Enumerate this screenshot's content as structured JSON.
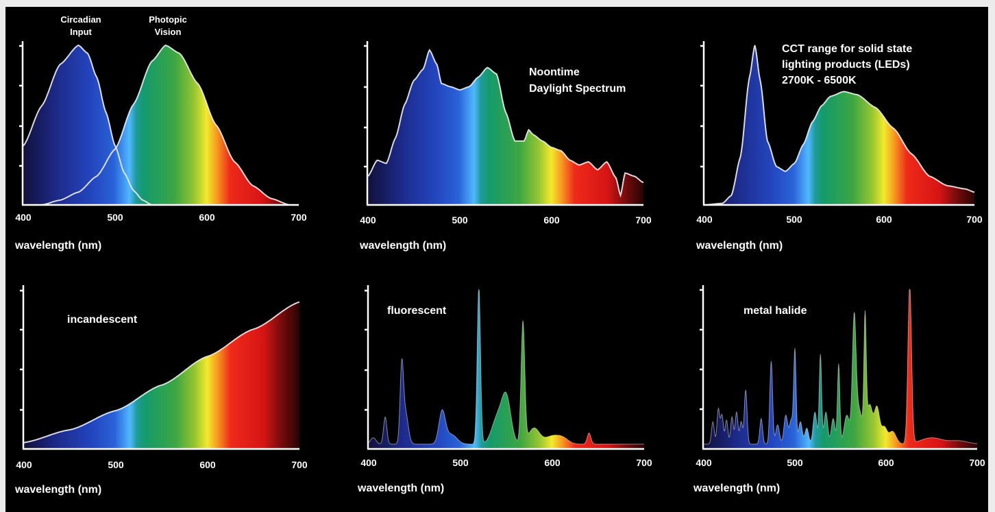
{
  "chart_data": [
    {
      "type": "area",
      "title": "",
      "xlabel": "wavelength (nm)",
      "ylabel": "",
      "xlim": [
        400,
        700
      ],
      "xticks": [
        "400",
        "500",
        "600",
        "700"
      ],
      "grid": false,
      "fill": "visible spectrum gradient",
      "series": [
        {
          "name": "Circadian Input",
          "x": [
            400,
            420,
            440,
            460,
            470,
            480,
            490,
            500,
            510,
            520,
            530,
            540
          ],
          "y": [
            0.37,
            0.62,
            0.88,
            1.0,
            0.95,
            0.8,
            0.58,
            0.37,
            0.2,
            0.09,
            0.03,
            0
          ]
        },
        {
          "name": "Photopic Vision",
          "x": [
            420,
            440,
            460,
            480,
            500,
            520,
            540,
            555,
            570,
            590,
            610,
            630,
            650,
            670,
            690
          ],
          "y": [
            0,
            0.03,
            0.08,
            0.18,
            0.35,
            0.63,
            0.9,
            1.0,
            0.95,
            0.76,
            0.5,
            0.27,
            0.12,
            0.04,
            0
          ]
        }
      ]
    },
    {
      "type": "area",
      "title": "",
      "annotations": [
        "Noontime",
        "Daylight Spectrum"
      ],
      "xlabel": "wavelength (nm)",
      "ylabel": "",
      "xlim": [
        400,
        700
      ],
      "xticks": [
        "400",
        "500",
        "600",
        "700"
      ],
      "grid": false,
      "series": [
        {
          "name": "",
          "x": [
            400,
            410,
            420,
            430,
            440,
            450,
            460,
            467,
            475,
            480,
            490,
            500,
            510,
            520,
            530,
            540,
            550,
            560,
            570,
            575,
            580,
            590,
            600,
            610,
            620,
            630,
            640,
            650,
            660,
            670,
            675,
            680,
            690,
            700
          ],
          "y": [
            0.18,
            0.28,
            0.26,
            0.42,
            0.63,
            0.78,
            0.85,
            0.97,
            0.88,
            0.76,
            0.74,
            0.72,
            0.74,
            0.8,
            0.86,
            0.82,
            0.58,
            0.4,
            0.4,
            0.47,
            0.44,
            0.4,
            0.36,
            0.34,
            0.28,
            0.25,
            0.27,
            0.22,
            0.27,
            0.17,
            0.06,
            0.2,
            0.18,
            0.14
          ]
        }
      ]
    },
    {
      "type": "area",
      "title": "",
      "annotations": [
        "CCT range for solid state",
        "lighting products (LEDs)",
        "2700K - 6500K"
      ],
      "xlabel": "wavelength (nm)",
      "ylabel": "",
      "xlim": [
        400,
        700
      ],
      "xticks": [
        "400",
        "500",
        "600",
        "700"
      ],
      "grid": false,
      "series": [
        {
          "name": "",
          "x": [
            400,
            420,
            430,
            440,
            450,
            456,
            462,
            470,
            480,
            490,
            500,
            510,
            520,
            530,
            540,
            555,
            570,
            590,
            610,
            630,
            650,
            670,
            690,
            700
          ],
          "y": [
            0,
            0.01,
            0.06,
            0.3,
            0.8,
            1.0,
            0.78,
            0.4,
            0.24,
            0.21,
            0.26,
            0.38,
            0.52,
            0.62,
            0.68,
            0.71,
            0.69,
            0.61,
            0.48,
            0.32,
            0.18,
            0.12,
            0.1,
            0.08
          ]
        }
      ]
    },
    {
      "type": "area",
      "title": "",
      "annotations": [
        "incandescent"
      ],
      "xlabel": "wavelength (nm)",
      "ylabel": "",
      "xlim": [
        400,
        700
      ],
      "xticks": [
        "400",
        "500",
        "600",
        "700"
      ],
      "grid": false,
      "series": [
        {
          "name": "",
          "x": [
            400,
            450,
            500,
            550,
            600,
            650,
            700
          ],
          "y": [
            0.04,
            0.12,
            0.24,
            0.4,
            0.58,
            0.75,
            0.92
          ]
        }
      ]
    },
    {
      "type": "area",
      "title": "",
      "annotations": [
        "fluorescent"
      ],
      "xlabel": "wavelength (nm)",
      "ylabel": "",
      "xlim": [
        400,
        700
      ],
      "xticks": [
        "400",
        "500",
        "600",
        "700"
      ],
      "grid": false,
      "baseline": 0.03,
      "peaks": [
        {
          "x": 405,
          "y": 0.04,
          "w": 3
        },
        {
          "x": 418,
          "y": 0.17,
          "w": 1.8
        },
        {
          "x": 436,
          "y": 0.45,
          "w": 1.8
        },
        {
          "x": 440,
          "y": 0.2,
          "w": 3
        },
        {
          "x": 480,
          "y": 0.2,
          "w": 3.5
        },
        {
          "x": 490,
          "y": 0.06,
          "w": 6
        },
        {
          "x": 520,
          "y": 0.99,
          "w": 1.8
        },
        {
          "x": 540,
          "y": 0.16,
          "w": 6
        },
        {
          "x": 550,
          "y": 0.28,
          "w": 5
        },
        {
          "x": 568,
          "y": 0.76,
          "w": 2
        },
        {
          "x": 580,
          "y": 0.1,
          "w": 6
        },
        {
          "x": 600,
          "y": 0.05,
          "w": 8
        },
        {
          "x": 612,
          "y": 0.03,
          "w": 6
        },
        {
          "x": 640,
          "y": 0.07,
          "w": 2
        }
      ]
    },
    {
      "type": "area",
      "title": "",
      "annotations": [
        "metal  halide"
      ],
      "xlabel": "wavelength (nm)",
      "ylabel": "",
      "xlim": [
        400,
        700
      ],
      "xticks": [
        "400",
        "500",
        "600",
        "700"
      ],
      "grid": false,
      "baseline": 0.03,
      "peaks": [
        {
          "x": 410,
          "y": 0.14,
          "w": 1.5
        },
        {
          "x": 416,
          "y": 0.22,
          "w": 1.5
        },
        {
          "x": 420,
          "y": 0.18,
          "w": 1.5
        },
        {
          "x": 425,
          "y": 0.15,
          "w": 1.5
        },
        {
          "x": 431,
          "y": 0.17,
          "w": 1.5
        },
        {
          "x": 436,
          "y": 0.2,
          "w": 1.5
        },
        {
          "x": 441,
          "y": 0.14,
          "w": 1.5
        },
        {
          "x": 446,
          "y": 0.34,
          "w": 1.5
        },
        {
          "x": 463,
          "y": 0.16,
          "w": 1.5
        },
        {
          "x": 474,
          "y": 0.52,
          "w": 1.5
        },
        {
          "x": 481,
          "y": 0.12,
          "w": 2
        },
        {
          "x": 490,
          "y": 0.18,
          "w": 2
        },
        {
          "x": 496,
          "y": 0.15,
          "w": 2
        },
        {
          "x": 500,
          "y": 0.58,
          "w": 1.3
        },
        {
          "x": 506,
          "y": 0.14,
          "w": 2
        },
        {
          "x": 513,
          "y": 0.1,
          "w": 2
        },
        {
          "x": 522,
          "y": 0.2,
          "w": 2
        },
        {
          "x": 528,
          "y": 0.56,
          "w": 1.3
        },
        {
          "x": 534,
          "y": 0.2,
          "w": 2
        },
        {
          "x": 542,
          "y": 0.16,
          "w": 2
        },
        {
          "x": 548,
          "y": 0.5,
          "w": 1.3
        },
        {
          "x": 557,
          "y": 0.18,
          "w": 3
        },
        {
          "x": 565,
          "y": 0.72,
          "w": 2
        },
        {
          "x": 570,
          "y": 0.22,
          "w": 4
        },
        {
          "x": 577,
          "y": 0.73,
          "w": 1.3
        },
        {
          "x": 582,
          "y": 0.24,
          "w": 3
        },
        {
          "x": 590,
          "y": 0.23,
          "w": 3
        },
        {
          "x": 598,
          "y": 0.1,
          "w": 3
        },
        {
          "x": 607,
          "y": 0.08,
          "w": 4
        },
        {
          "x": 626,
          "y": 0.99,
          "w": 2
        },
        {
          "x": 650,
          "y": 0.04,
          "w": 12
        },
        {
          "x": 680,
          "y": 0.02,
          "w": 10
        }
      ]
    }
  ],
  "labels": {
    "circadian_1": "Circadian",
    "circadian_2": "Input",
    "photopic_1": "Photopic",
    "photopic_2": "Vision"
  },
  "colors": {
    "background": "#000000",
    "border": "#ececec",
    "axis": "#ffffff",
    "outline": "#e6e6e6"
  }
}
